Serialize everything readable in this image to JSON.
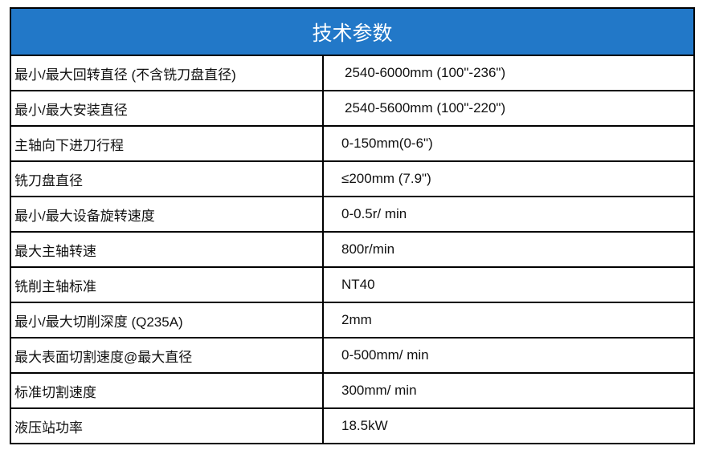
{
  "title": "技术参数",
  "rows": [
    {
      "label": "最小/最大回转直径 (不含铣刀盘直径)",
      "value": "2540-6000mm (100\"-236\")"
    },
    {
      "label": "最小/最大安装直径",
      "value": "2540-5600mm (100\"-220\")"
    },
    {
      "label": "主轴向下进刀行程",
      "value": "0-150mm(0-6\")"
    },
    {
      "label": "铣刀盘直径",
      "value": "≤200mm (7.9\")"
    },
    {
      "label": "最小/最大设备旋转速度",
      "value": "0-0.5r/ min"
    },
    {
      "label": "最大主轴转速",
      "value": "800r/min"
    },
    {
      "label": "铣削主轴标准",
      "value": "NT40"
    },
    {
      "label": "最小/最大切削深度 (Q235A)",
      "value": "2mm"
    },
    {
      "label": "最大表面切割速度@最大直径",
      "value": "0-500mm/ min"
    },
    {
      "label": "标准切割速度",
      "value": "300mm/ min"
    },
    {
      "label": "液压站功率",
      "value": "18.5kW"
    }
  ]
}
